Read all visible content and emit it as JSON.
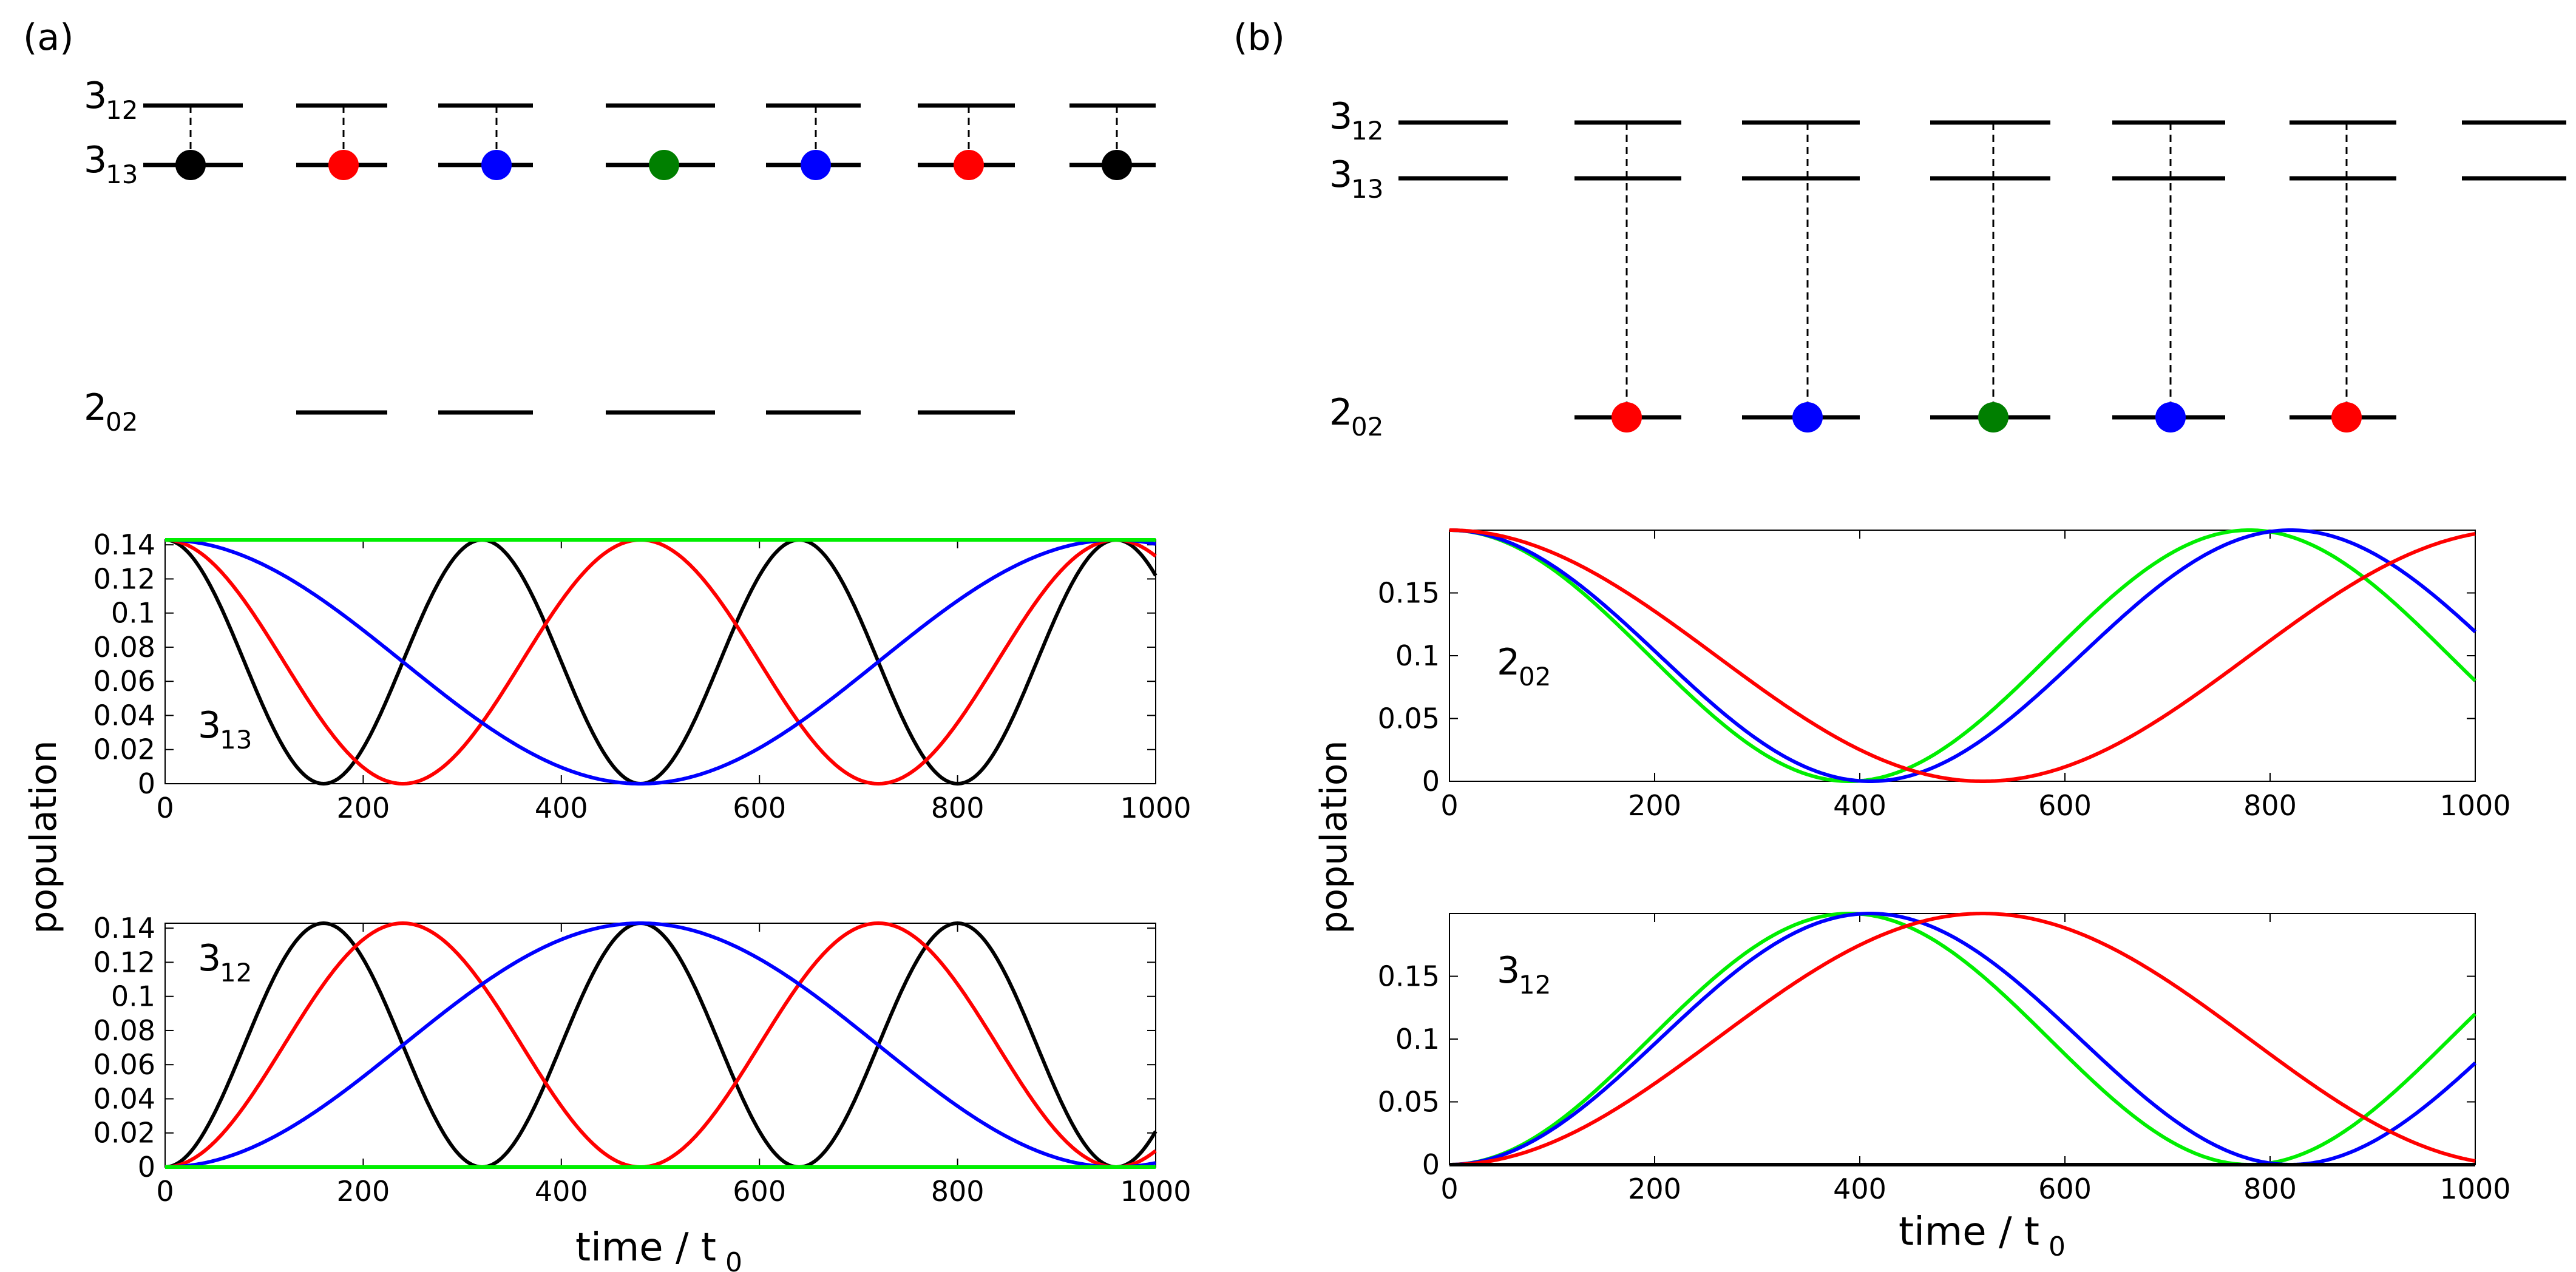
{
  "panels": [
    {
      "label": "(a)",
      "levels": [
        {
          "main": "3",
          "sub": "12"
        },
        {
          "main": "3",
          "sub": "13"
        },
        {
          "main": "2",
          "sub": "02"
        }
      ],
      "dot_colors": [
        "#000000",
        "#ff0000",
        "#0000ff",
        "#007f00",
        "#0000ff",
        "#ff0000",
        "#000000"
      ]
    },
    {
      "label": "(b)",
      "levels": [
        {
          "main": "3",
          "sub": "12"
        },
        {
          "main": "3",
          "sub": "13"
        },
        {
          "main": "2",
          "sub": "02"
        }
      ],
      "dot_colors": [
        "#ff0000",
        "#0000ff",
        "#007f00",
        "#0000ff",
        "#ff0000"
      ]
    }
  ],
  "shared_ylabel": "population",
  "xlabel": {
    "main": "time / t",
    "sub": "0"
  },
  "colors": {
    "black": "#000000",
    "red": "#ff0000",
    "blue": "#0000ff",
    "green": "#00ee00"
  },
  "chart_data": [
    {
      "type": "line",
      "panel": "(a)",
      "annotation": {
        "main": "3",
        "sub": "13"
      },
      "xlim": [
        0,
        1000
      ],
      "ylim": [
        0,
        0.1429
      ],
      "xticks": [
        "0",
        "200",
        "400",
        "600",
        "800",
        "1000"
      ],
      "yticks": [
        "0",
        "0.02",
        "0.04",
        "0.06",
        "0.08",
        "0.1",
        "0.12",
        "0.14"
      ],
      "ytick_values": [
        0,
        0.02,
        0.04,
        0.06,
        0.08,
        0.1,
        0.12,
        0.14
      ],
      "series": [
        {
          "color": "#000000",
          "formula": "cos2",
          "amp": 0.1429,
          "period": 320,
          "offset": 0
        },
        {
          "color": "#ff0000",
          "formula": "cos2",
          "amp": 0.1429,
          "period": 480,
          "offset": 0
        },
        {
          "color": "#0000ff",
          "formula": "cos2",
          "amp": 0.1429,
          "period": 960,
          "offset": 0
        },
        {
          "color": "#00ee00",
          "formula": "const",
          "amp": 0.1429
        }
      ]
    },
    {
      "type": "line",
      "panel": "(a)",
      "annotation": {
        "main": "3",
        "sub": "12"
      },
      "xlim": [
        0,
        1000
      ],
      "ylim": [
        0,
        0.1429
      ],
      "xticks": [
        "0",
        "200",
        "400",
        "600",
        "800",
        "1000"
      ],
      "yticks": [
        "0",
        "0.02",
        "0.04",
        "0.06",
        "0.08",
        "0.1",
        "0.12",
        "0.14"
      ],
      "ytick_values": [
        0,
        0.02,
        0.04,
        0.06,
        0.08,
        0.1,
        0.12,
        0.14
      ],
      "series": [
        {
          "color": "#000000",
          "formula": "sin2",
          "amp": 0.1429,
          "period": 320,
          "offset": 0
        },
        {
          "color": "#ff0000",
          "formula": "sin2",
          "amp": 0.1429,
          "period": 480,
          "offset": 0
        },
        {
          "color": "#0000ff",
          "formula": "sin2",
          "amp": 0.1429,
          "period": 960,
          "offset": 0
        },
        {
          "color": "#00ee00",
          "formula": "const",
          "amp": 0
        }
      ]
    },
    {
      "type": "line",
      "panel": "(b)",
      "annotation": {
        "main": "2",
        "sub": "02"
      },
      "xlim": [
        0,
        1000
      ],
      "ylim": [
        0,
        0.2
      ],
      "xticks": [
        "0",
        "200",
        "400",
        "600",
        "800",
        "1000"
      ],
      "yticks": [
        "0",
        "0.05",
        "0.1",
        "0.15"
      ],
      "ytick_values": [
        0,
        0.05,
        0.1,
        0.15
      ],
      "series": [
        {
          "color": "#00ee00",
          "formula": "cos2",
          "amp": 0.2,
          "period": 780,
          "offset": 0
        },
        {
          "color": "#0000ff",
          "formula": "cos2",
          "amp": 0.2,
          "period": 820,
          "offset": 0
        },
        {
          "color": "#ff0000",
          "formula": "cos2",
          "amp": 0.2,
          "period": 1040,
          "offset": 0
        }
      ]
    },
    {
      "type": "line",
      "panel": "(b)",
      "annotation": {
        "main": "3",
        "sub": "12"
      },
      "xlim": [
        0,
        1000
      ],
      "ylim": [
        0,
        0.2
      ],
      "xticks": [
        "0",
        "200",
        "400",
        "600",
        "800",
        "1000"
      ],
      "yticks": [
        "0",
        "0.05",
        "0.1",
        "0.15"
      ],
      "ytick_values": [
        0,
        0.05,
        0.1,
        0.15
      ],
      "series": [
        {
          "color": "#00ee00",
          "formula": "sin2",
          "amp": 0.2,
          "period": 780,
          "offset": 0
        },
        {
          "color": "#0000ff",
          "formula": "sin2",
          "amp": 0.2,
          "period": 820,
          "offset": 0
        },
        {
          "color": "#ff0000",
          "formula": "sin2",
          "amp": 0.2,
          "period": 1040,
          "offset": 0
        },
        {
          "color": "#000000",
          "formula": "const",
          "amp": 0
        }
      ]
    }
  ]
}
